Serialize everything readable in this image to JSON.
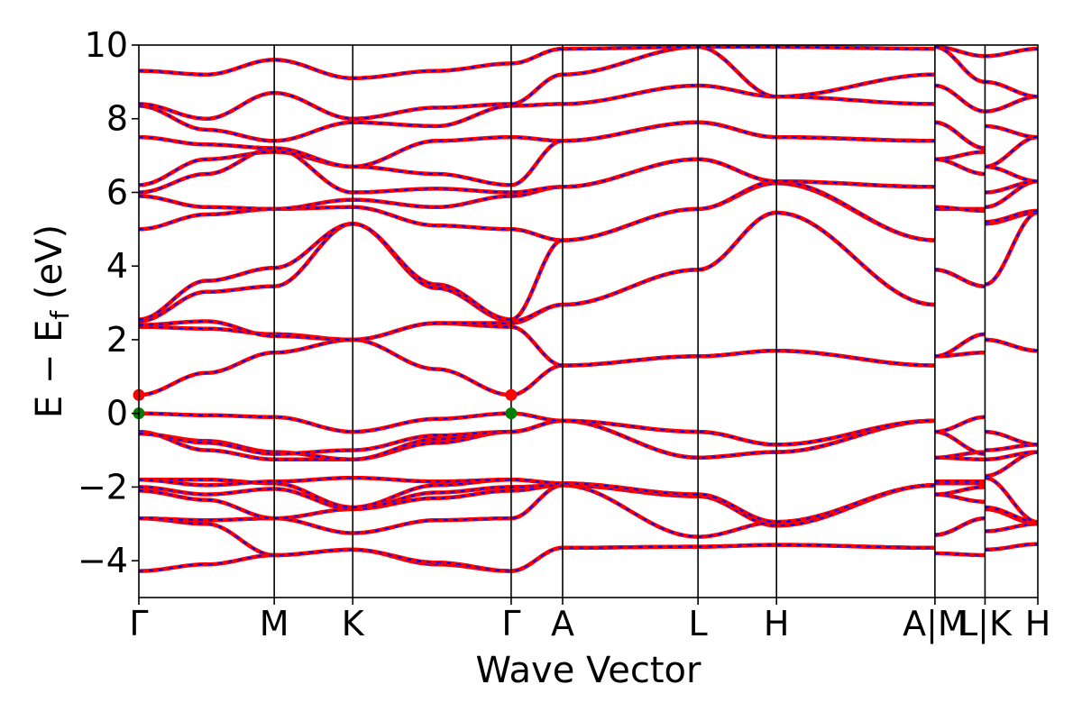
{
  "chart_data": {
    "type": "line",
    "title": "",
    "xlabel": "Wave Vector",
    "ylabel_parts": {
      "main": "E − E",
      "sub": "f",
      "unit": " (eV)"
    },
    "ylim": [
      -5,
      10
    ],
    "yticks": [
      {
        "value": -4,
        "label": "−4"
      },
      {
        "value": -2,
        "label": "−2"
      },
      {
        "value": 0,
        "label": "0"
      },
      {
        "value": 2,
        "label": "2"
      },
      {
        "value": 4,
        "label": "4"
      },
      {
        "value": 6,
        "label": "6"
      },
      {
        "value": 8,
        "label": "8"
      },
      {
        "value": 10,
        "label": "10"
      }
    ],
    "xlim": [
      0,
      6.64
    ],
    "kpoints": [
      {
        "label": "Γ",
        "x": 0.0
      },
      {
        "label": "M",
        "x": 1.0
      },
      {
        "label": "K",
        "x": 1.58
      },
      {
        "label": "Γ",
        "x": 2.75
      },
      {
        "label": "A",
        "x": 3.13
      },
      {
        "label": "L",
        "x": 4.13
      },
      {
        "label": "H",
        "x": 4.71
      },
      {
        "label": "A|M",
        "x": 5.88
      },
      {
        "label": "L|K",
        "x": 6.25
      },
      {
        "label": "H",
        "x": 6.64
      }
    ],
    "grid": false,
    "colors": {
      "band_main": "#ff0000",
      "band_dash": "#0000ff",
      "cbm": "#ff0000",
      "vbm": "#008000",
      "kline": "#000000"
    },
    "markers": [
      {
        "x": 0.0,
        "y": 0.5,
        "kind": "cbm"
      },
      {
        "x": 2.75,
        "y": 0.5,
        "kind": "cbm"
      },
      {
        "x": 0.0,
        "y": 0.0,
        "kind": "vbm"
      },
      {
        "x": 2.75,
        "y": 0.0,
        "kind": "vbm"
      }
    ],
    "bands": [
      [
        [
          0,
          -4.28
        ],
        [
          0.5,
          -4.1
        ],
        [
          1,
          -3.85
        ],
        [
          1.58,
          -3.7
        ],
        [
          2.2,
          -4.1
        ],
        [
          2.75,
          -4.28
        ],
        [
          3.13,
          -3.65
        ],
        [
          4.13,
          -3.62
        ],
        [
          4.71,
          -3.57
        ],
        [
          5.88,
          -3.65
        ],
        [
          5.88,
          -3.8
        ],
        [
          6.25,
          -3.85
        ],
        [
          6.25,
          -3.7
        ],
        [
          6.64,
          -3.55
        ]
      ],
      [
        [
          0,
          -2.85
        ],
        [
          0.5,
          -3.0
        ],
        [
          1,
          -3.85
        ],
        [
          1.58,
          -3.7
        ],
        [
          2.2,
          -4.05
        ],
        [
          2.75,
          -4.28
        ],
        [
          3.13,
          -3.65
        ],
        [
          4.13,
          -3.62
        ],
        [
          4.71,
          -3.57
        ],
        [
          5.88,
          -3.65
        ],
        [
          5.88,
          -3.3
        ],
        [
          6.25,
          -2.85
        ],
        [
          6.25,
          -3.2
        ],
        [
          6.64,
          -3.0
        ]
      ],
      [
        [
          0,
          -2.85
        ],
        [
          0.5,
          -2.9
        ],
        [
          1,
          -2.85
        ],
        [
          1.58,
          -3.25
        ],
        [
          2.2,
          -2.9
        ],
        [
          2.75,
          -2.85
        ],
        [
          3.13,
          -1.95
        ],
        [
          4.13,
          -3.35
        ],
        [
          4.71,
          -2.95
        ],
        [
          5.88,
          -1.95
        ],
        [
          5.88,
          -3.3
        ],
        [
          6.25,
          -2.85
        ],
        [
          6.25,
          -2.6
        ],
        [
          6.64,
          -3.0
        ]
      ],
      [
        [
          0,
          -2.1
        ],
        [
          0.5,
          -2.35
        ],
        [
          1,
          -2.85
        ],
        [
          1.58,
          -2.6
        ],
        [
          2.2,
          -2.3
        ],
        [
          2.75,
          -2.1
        ],
        [
          3.13,
          -1.95
        ],
        [
          4.13,
          -2.25
        ],
        [
          4.71,
          -2.95
        ],
        [
          5.88,
          -1.95
        ],
        [
          5.88,
          -2.2
        ],
        [
          6.25,
          -2.4
        ],
        [
          6.25,
          -2.6
        ],
        [
          6.64,
          -3.0
        ]
      ],
      [
        [
          0,
          -2.0
        ],
        [
          0.5,
          -2.2
        ],
        [
          1,
          -2.05
        ],
        [
          1.58,
          -2.6
        ],
        [
          2.2,
          -2.15
        ],
        [
          2.75,
          -2.0
        ],
        [
          3.13,
          -1.95
        ],
        [
          4.13,
          -2.25
        ],
        [
          4.71,
          -3.05
        ],
        [
          5.88,
          -1.95
        ],
        [
          5.88,
          -2.2
        ],
        [
          6.25,
          -2.0
        ],
        [
          6.25,
          -2.6
        ],
        [
          6.64,
          -2.95
        ]
      ],
      [
        [
          0,
          -1.8
        ],
        [
          0.5,
          -1.8
        ],
        [
          1,
          -1.9
        ],
        [
          1.58,
          -2.55
        ],
        [
          2.2,
          -1.95
        ],
        [
          2.75,
          -1.8
        ],
        [
          3.13,
          -1.9
        ],
        [
          4.13,
          -2.2
        ],
        [
          4.71,
          -2.95
        ],
        [
          5.88,
          -1.95
        ],
        [
          5.88,
          -1.9
        ],
        [
          6.25,
          -1.9
        ],
        [
          6.25,
          -2.55
        ],
        [
          6.64,
          -2.95
        ]
      ],
      [
        [
          0,
          -1.8
        ],
        [
          0.5,
          -1.95
        ],
        [
          1,
          -1.85
        ],
        [
          1.58,
          -1.75
        ],
        [
          2.2,
          -1.85
        ],
        [
          2.75,
          -1.8
        ],
        [
          3.13,
          -1.9
        ],
        [
          4.13,
          -2.2
        ],
        [
          4.71,
          -2.95
        ],
        [
          5.88,
          -1.95
        ],
        [
          5.88,
          -1.85
        ],
        [
          6.25,
          -1.85
        ],
        [
          6.25,
          -1.75
        ],
        [
          6.64,
          -2.95
        ]
      ],
      [
        [
          0,
          -0.5
        ],
        [
          0.5,
          -1.0
        ],
        [
          1,
          -1.25
        ],
        [
          1.58,
          -1.25
        ],
        [
          2.2,
          -0.8
        ],
        [
          2.75,
          -0.5
        ],
        [
          3.13,
          -0.2
        ],
        [
          4.13,
          -1.2
        ],
        [
          4.71,
          -1.05
        ],
        [
          5.88,
          -0.2
        ],
        [
          5.88,
          -1.2
        ],
        [
          6.25,
          -1.25
        ],
        [
          6.25,
          -1.7
        ],
        [
          6.64,
          -1.05
        ]
      ],
      [
        [
          0,
          -0.55
        ],
        [
          0.5,
          -0.75
        ],
        [
          1,
          -1.05
        ],
        [
          1.58,
          -1.25
        ],
        [
          2.2,
          -0.7
        ],
        [
          2.75,
          -0.5
        ],
        [
          3.13,
          -0.2
        ],
        [
          4.13,
          -1.2
        ],
        [
          4.71,
          -1.05
        ],
        [
          5.88,
          -0.2
        ],
        [
          5.88,
          -1.2
        ],
        [
          6.25,
          -1.05
        ],
        [
          6.25,
          -1.25
        ],
        [
          6.64,
          -1.05
        ]
      ],
      [
        [
          0,
          -0.55
        ],
        [
          0.5,
          -0.8
        ],
        [
          1,
          -1.1
        ],
        [
          1.58,
          -1.0
        ],
        [
          2.2,
          -0.6
        ],
        [
          2.75,
          -0.5
        ],
        [
          3.13,
          -0.2
        ],
        [
          4.13,
          -0.5
        ],
        [
          4.71,
          -0.85
        ],
        [
          5.88,
          -0.2
        ],
        [
          5.88,
          -0.5
        ],
        [
          6.25,
          -1.1
        ],
        [
          6.25,
          -1.0
        ],
        [
          6.64,
          -0.85
        ]
      ],
      [
        [
          0,
          0.0
        ],
        [
          0.5,
          -0.05
        ],
        [
          1,
          -0.1
        ],
        [
          1.58,
          -0.5
        ],
        [
          2.2,
          -0.15
        ],
        [
          2.75,
          0.0
        ],
        [
          3.13,
          -0.2
        ],
        [
          4.13,
          -0.5
        ],
        [
          4.71,
          -0.85
        ],
        [
          5.88,
          -0.2
        ],
        [
          5.88,
          -0.5
        ],
        [
          6.25,
          -0.1
        ],
        [
          6.25,
          -0.5
        ],
        [
          6.64,
          -0.85
        ]
      ],
      [
        [
          0,
          0.5
        ],
        [
          0.5,
          1.1
        ],
        [
          1,
          1.65
        ],
        [
          1.58,
          2.0
        ],
        [
          2.2,
          1.2
        ],
        [
          2.75,
          0.5
        ],
        [
          3.13,
          1.3
        ],
        [
          4.13,
          1.55
        ],
        [
          4.71,
          1.7
        ],
        [
          5.88,
          1.3
        ],
        [
          5.88,
          1.55
        ],
        [
          6.25,
          1.65
        ],
        [
          6.25,
          2.0
        ],
        [
          6.64,
          1.7
        ]
      ],
      [
        [
          0,
          2.35
        ],
        [
          0.5,
          2.3
        ],
        [
          1,
          2.15
        ],
        [
          1.58,
          2.0
        ],
        [
          2.2,
          2.45
        ],
        [
          2.75,
          2.35
        ],
        [
          3.13,
          1.3
        ],
        [
          4.13,
          1.55
        ],
        [
          4.71,
          1.7
        ],
        [
          5.88,
          1.3
        ],
        [
          5.88,
          1.55
        ],
        [
          6.25,
          2.15
        ],
        [
          6.25,
          2.0
        ],
        [
          6.64,
          1.7
        ]
      ],
      [
        [
          0,
          2.4
        ],
        [
          0.5,
          2.5
        ],
        [
          1,
          2.1
        ],
        [
          1.58,
          2.0
        ],
        [
          2.2,
          2.45
        ],
        [
          2.75,
          2.45
        ],
        [
          3.13,
          2.95
        ],
        [
          4.13,
          3.9
        ],
        [
          4.71,
          5.45
        ],
        [
          5.88,
          2.95
        ],
        [
          5.88,
          3.9
        ],
        [
          6.25,
          3.45
        ],
        [
          6.25,
          3.5
        ],
        [
          6.64,
          5.45
        ]
      ],
      [
        [
          0,
          2.5
        ],
        [
          0.5,
          3.3
        ],
        [
          1,
          3.45
        ],
        [
          1.58,
          5.15
        ],
        [
          2.2,
          3.4
        ],
        [
          2.75,
          2.5
        ],
        [
          3.13,
          2.95
        ],
        [
          4.13,
          3.9
        ],
        [
          4.71,
          5.45
        ],
        [
          5.88,
          2.95
        ],
        [
          5.88,
          3.9
        ],
        [
          6.25,
          3.45
        ],
        [
          6.25,
          5.15
        ],
        [
          6.64,
          5.45
        ]
      ],
      [
        [
          0,
          2.55
        ],
        [
          0.5,
          3.6
        ],
        [
          1,
          3.95
        ],
        [
          1.58,
          5.15
        ],
        [
          2.2,
          3.5
        ],
        [
          2.75,
          2.55
        ],
        [
          3.13,
          4.7
        ],
        [
          4.13,
          5.55
        ],
        [
          4.71,
          6.25
        ],
        [
          5.88,
          4.7
        ],
        [
          5.88,
          5.55
        ],
        [
          6.25,
          5.55
        ],
        [
          6.25,
          5.2
        ],
        [
          6.64,
          5.5
        ]
      ],
      [
        [
          0,
          5.0
        ],
        [
          0.5,
          5.4
        ],
        [
          1,
          5.55
        ],
        [
          1.58,
          5.6
        ],
        [
          2.2,
          5.1
        ],
        [
          2.75,
          5.0
        ],
        [
          3.13,
          4.7
        ],
        [
          4.13,
          5.55
        ],
        [
          4.71,
          6.3
        ],
        [
          5.88,
          4.7
        ],
        [
          5.88,
          5.6
        ],
        [
          6.25,
          5.5
        ],
        [
          6.25,
          5.6
        ],
        [
          6.64,
          6.3
        ]
      ],
      [
        [
          0,
          5.9
        ],
        [
          0.5,
          5.6
        ],
        [
          1,
          5.55
        ],
        [
          1.58,
          5.8
        ],
        [
          2.2,
          5.6
        ],
        [
          2.75,
          5.9
        ],
        [
          3.13,
          6.15
        ],
        [
          4.13,
          6.9
        ],
        [
          4.71,
          6.3
        ],
        [
          5.88,
          6.15
        ],
        [
          5.88,
          6.9
        ],
        [
          6.25,
          6.5
        ],
        [
          6.25,
          6.0
        ],
        [
          6.64,
          6.3
        ]
      ],
      [
        [
          0,
          6.0
        ],
        [
          0.5,
          6.5
        ],
        [
          1,
          7.2
        ],
        [
          1.58,
          6.0
        ],
        [
          2.2,
          6.1
        ],
        [
          2.75,
          6.0
        ],
        [
          3.13,
          6.15
        ],
        [
          4.13,
          6.9
        ],
        [
          4.71,
          6.3
        ],
        [
          5.88,
          6.15
        ],
        [
          5.88,
          6.9
        ],
        [
          6.25,
          7.1
        ],
        [
          6.25,
          6.7
        ],
        [
          6.64,
          6.3
        ]
      ],
      [
        [
          0,
          6.2
        ],
        [
          0.5,
          6.9
        ],
        [
          1,
          7.1
        ],
        [
          1.58,
          6.7
        ],
        [
          2.2,
          6.5
        ],
        [
          2.75,
          6.2
        ],
        [
          3.13,
          7.4
        ],
        [
          4.13,
          7.9
        ],
        [
          4.71,
          7.5
        ],
        [
          5.88,
          7.4
        ],
        [
          5.88,
          7.9
        ],
        [
          6.25,
          7.2
        ],
        [
          6.25,
          6.7
        ],
        [
          6.64,
          7.5
        ]
      ],
      [
        [
          0,
          7.5
        ],
        [
          0.5,
          7.3
        ],
        [
          1,
          7.2
        ],
        [
          1.58,
          6.7
        ],
        [
          2.2,
          7.4
        ],
        [
          2.75,
          7.5
        ],
        [
          3.13,
          7.4
        ],
        [
          4.13,
          7.9
        ],
        [
          4.71,
          7.5
        ],
        [
          5.88,
          7.4
        ],
        [
          5.88,
          7.9
        ],
        [
          6.25,
          7.2
        ],
        [
          6.25,
          7.8
        ],
        [
          6.64,
          7.5
        ]
      ],
      [
        [
          0,
          8.35
        ],
        [
          0.5,
          7.7
        ],
        [
          1,
          7.4
        ],
        [
          1.58,
          7.9
        ],
        [
          2.2,
          7.8
        ],
        [
          2.75,
          8.35
        ],
        [
          3.13,
          8.4
        ],
        [
          4.13,
          8.9
        ],
        [
          4.71,
          8.6
        ],
        [
          5.88,
          8.4
        ],
        [
          5.88,
          8.9
        ],
        [
          6.25,
          8.2
        ],
        [
          6.25,
          8.2
        ],
        [
          6.64,
          8.6
        ]
      ],
      [
        [
          0,
          8.4
        ],
        [
          0.5,
          8.0
        ],
        [
          1,
          8.7
        ],
        [
          1.58,
          8.0
        ],
        [
          2.2,
          8.3
        ],
        [
          2.75,
          8.4
        ],
        [
          3.13,
          9.2
        ],
        [
          4.13,
          9.95
        ],
        [
          4.71,
          8.6
        ],
        [
          5.88,
          9.2
        ],
        [
          5.88,
          9.95
        ],
        [
          6.25,
          9.0
        ],
        [
          6.25,
          9.0
        ],
        [
          6.64,
          8.6
        ]
      ],
      [
        [
          0,
          9.3
        ],
        [
          0.5,
          9.2
        ],
        [
          1,
          9.6
        ],
        [
          1.58,
          9.1
        ],
        [
          2.2,
          9.3
        ],
        [
          2.75,
          9.5
        ],
        [
          3.13,
          9.9
        ],
        [
          4.13,
          9.95
        ],
        [
          4.71,
          9.95
        ],
        [
          5.88,
          9.9
        ],
        [
          5.88,
          9.95
        ],
        [
          6.25,
          9.7
        ],
        [
          6.25,
          9.7
        ],
        [
          6.64,
          9.9
        ]
      ]
    ]
  }
}
